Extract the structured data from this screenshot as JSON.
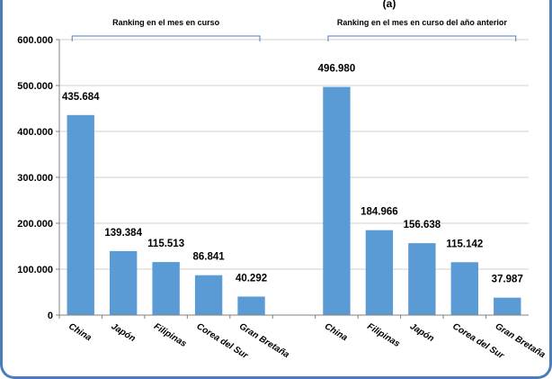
{
  "chart_data": {
    "type": "bar",
    "title": "(a)",
    "xlabel": "",
    "ylabel": "",
    "ylim": [
      0,
      600000
    ],
    "yticks": [
      0,
      100000,
      200000,
      300000,
      400000,
      500000,
      600000
    ],
    "ytick_labels": [
      "0",
      "100.000",
      "200.000",
      "300.000",
      "400.000",
      "500.000",
      "600.000"
    ],
    "grid": true,
    "legend": "none",
    "bar_color": "#5b9bd5",
    "groups": [
      {
        "label": "Ranking en el mes en curso",
        "categories": [
          "China",
          "Japón",
          "Filipinas",
          "Corea del Sur",
          "Gran Bretaña"
        ],
        "values": [
          435684,
          139384,
          115513,
          86841,
          40292
        ],
        "value_labels": [
          "435.684",
          "139.384",
          "115.513",
          "86.841",
          "40.292"
        ]
      },
      {
        "label": "Ranking en el mes en curso del año anterior",
        "categories": [
          "China",
          "Filipinas",
          "Japón",
          "Corea del Sur",
          "Gran Bretaña"
        ],
        "values": [
          496980,
          184966,
          156638,
          115142,
          37987
        ],
        "value_labels": [
          "496.980",
          "184.966",
          "156.638",
          "115.142",
          "37.987"
        ]
      }
    ]
  }
}
